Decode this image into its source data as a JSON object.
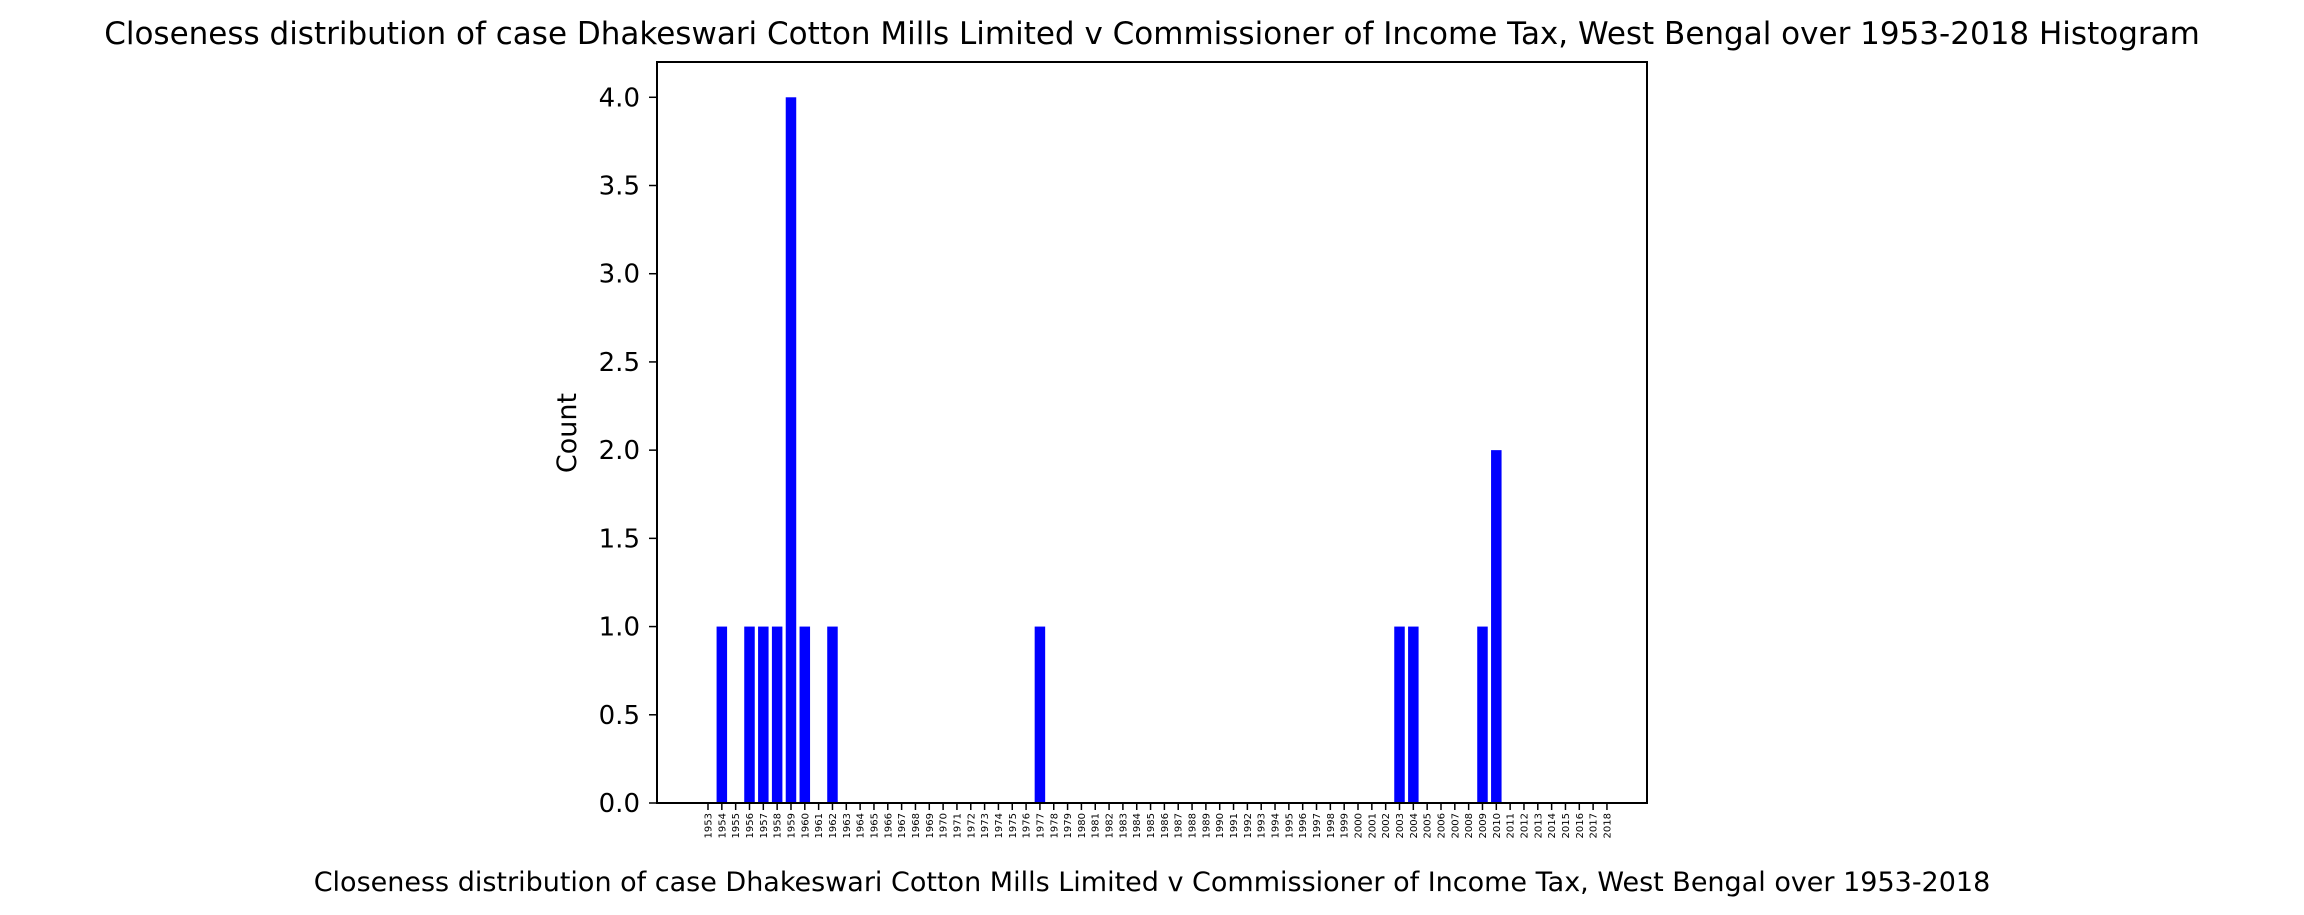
{
  "chart_data": {
    "type": "bar",
    "title": "Closeness distribution of case Dhakeswari Cotton Mills Limited v Commissioner of Income Tax, West Bengal over 1953-2018 Histogram",
    "xlabel": "Closeness distribution of case Dhakeswari Cotton Mills Limited v Commissioner of Income Tax, West Bengal over 1953-2018",
    "ylabel": "Count",
    "ylim": [
      0,
      4.2
    ],
    "yticks": [
      "0.0",
      "0.5",
      "1.0",
      "1.5",
      "2.0",
      "2.5",
      "3.0",
      "3.5",
      "4.0"
    ],
    "grid": false,
    "bar_color": "#0000ff",
    "categories": [
      "1953",
      "1954",
      "1955",
      "1956",
      "1957",
      "1958",
      "1959",
      "1960",
      "1961",
      "1962",
      "1963",
      "1964",
      "1965",
      "1966",
      "1967",
      "1968",
      "1969",
      "1970",
      "1971",
      "1972",
      "1973",
      "1974",
      "1975",
      "1976",
      "1977",
      "1978",
      "1979",
      "1980",
      "1981",
      "1982",
      "1983",
      "1984",
      "1985",
      "1986",
      "1987",
      "1988",
      "1989",
      "1990",
      "1991",
      "1992",
      "1993",
      "1994",
      "1995",
      "1996",
      "1997",
      "1998",
      "1999",
      "2000",
      "2001",
      "2002",
      "2003",
      "2004",
      "2005",
      "2006",
      "2007",
      "2008",
      "2009",
      "2010",
      "2011",
      "2012",
      "2013",
      "2014",
      "2015",
      "2016",
      "2017",
      "2018"
    ],
    "values": [
      0,
      1,
      0,
      1,
      1,
      1,
      4,
      1,
      0,
      1,
      0,
      0,
      0,
      0,
      0,
      0,
      0,
      0,
      0,
      0,
      0,
      0,
      0,
      0,
      1,
      0,
      0,
      0,
      0,
      0,
      0,
      0,
      0,
      0,
      0,
      0,
      0,
      0,
      0,
      0,
      0,
      0,
      0,
      0,
      0,
      0,
      0,
      0,
      0,
      0,
      1,
      1,
      0,
      0,
      0,
      0,
      1,
      2,
      0,
      0,
      0,
      0,
      0,
      0,
      0,
      0
    ]
  }
}
